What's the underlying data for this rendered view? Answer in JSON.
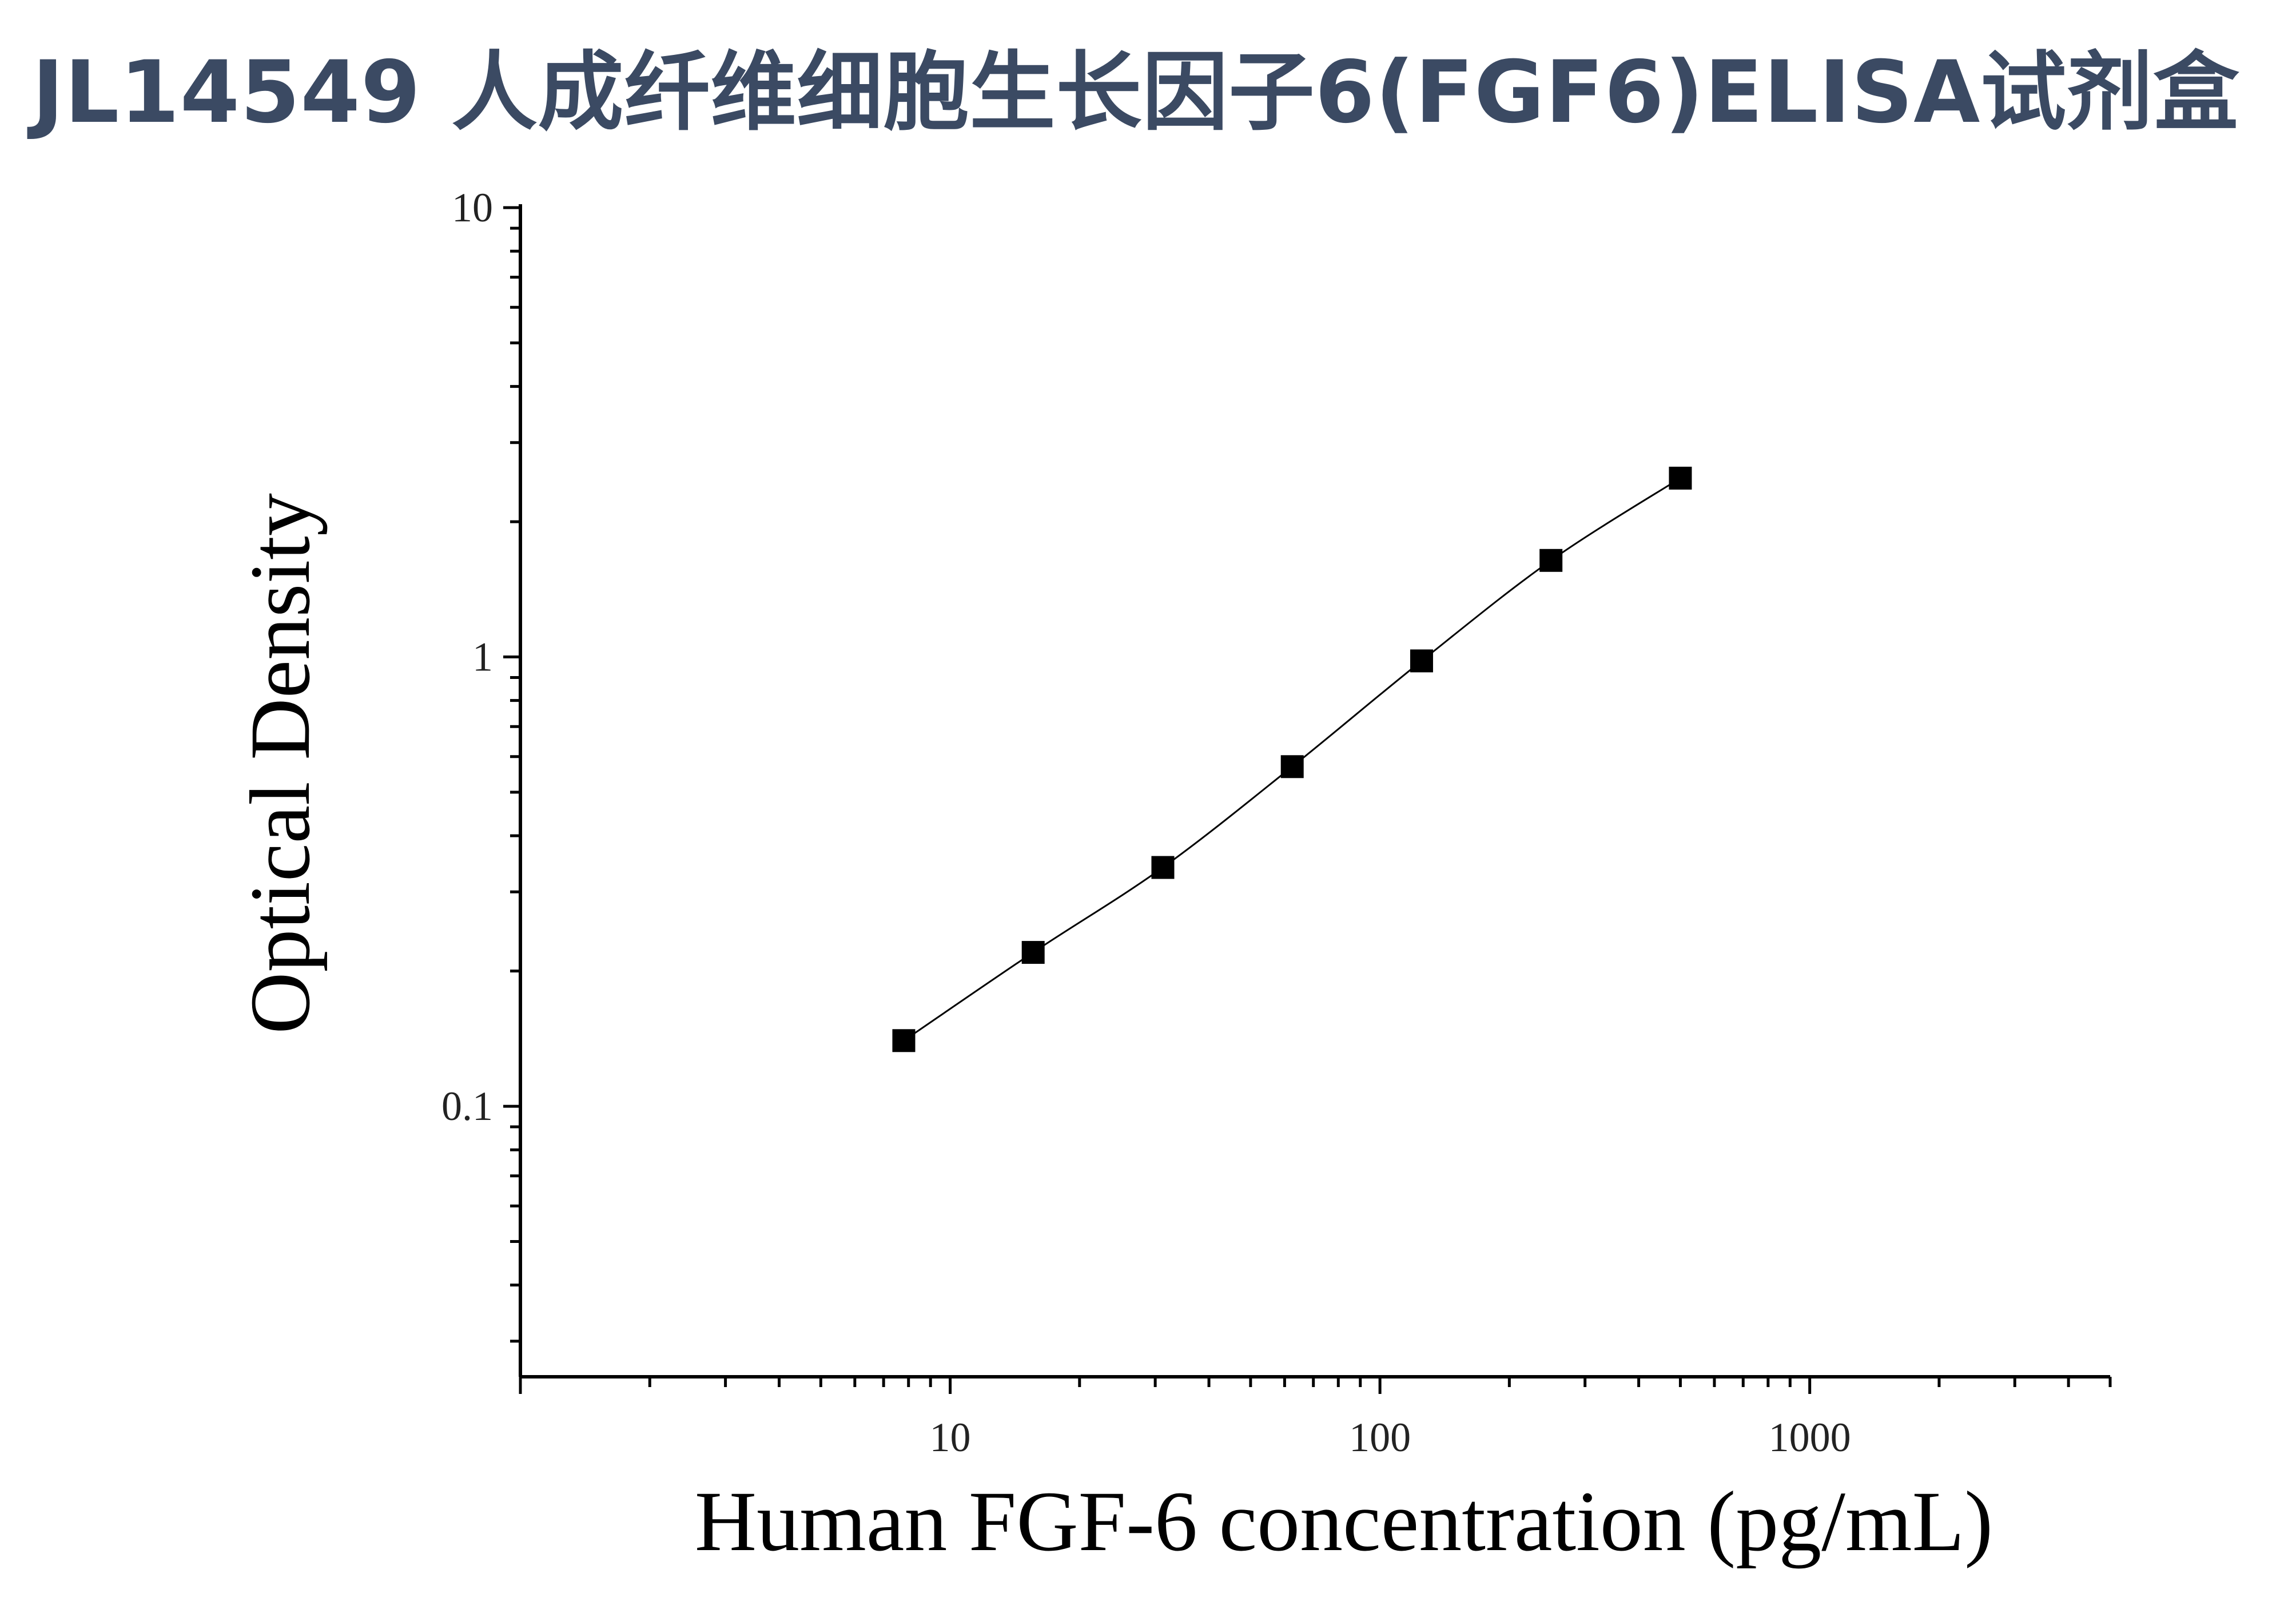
{
  "title": "JL14549 人成纤维细胞生长因子6(FGF6)ELISA试剂盒",
  "chart_data": {
    "type": "scatter",
    "title": "JL14549 人成纤维细胞生长因子6(FGF6)ELISA试剂盒",
    "xlabel": "Human FGF-6 concentration (pg/mL)",
    "ylabel": "Optical Density",
    "x_scale": "log",
    "y_scale": "log",
    "xlim": [
      1,
      5000
    ],
    "ylim": [
      0.025,
      10
    ],
    "x_ticks": [
      "10",
      "100",
      "1000"
    ],
    "y_ticks": [
      "0.1",
      "1",
      "10"
    ],
    "grid": false,
    "marker": "square",
    "fit_curve": true,
    "series": [
      {
        "x": [
          7.8,
          15.6,
          31.25,
          62.5,
          125,
          250,
          500
        ],
        "y": [
          0.14,
          0.22,
          0.34,
          0.57,
          0.98,
          1.64,
          2.5
        ]
      }
    ],
    "colors": {
      "marker": "#000000",
      "curve": "#000000",
      "axis": "#000000",
      "title": "#3b4a63"
    }
  }
}
